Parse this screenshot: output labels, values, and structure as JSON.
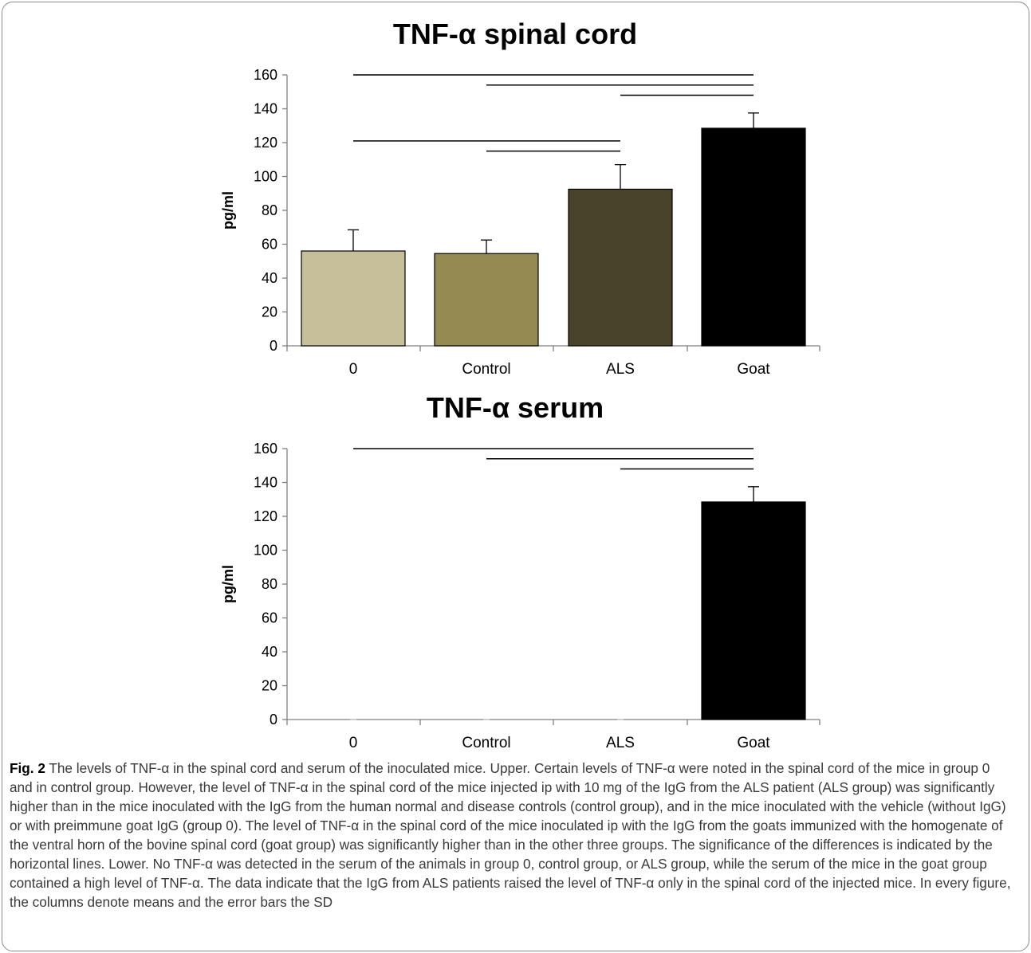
{
  "chart_data": [
    {
      "type": "bar",
      "title": "TNF-α spinal cord",
      "xlabel": "",
      "ylabel": "pg/ml",
      "ylim": [
        0,
        160
      ],
      "yticks": [
        0,
        20,
        40,
        60,
        80,
        100,
        120,
        140,
        160
      ],
      "categories": [
        "0",
        "Control",
        "ALS",
        "Goat"
      ],
      "values": [
        56,
        54.5,
        92.5,
        128.5
      ],
      "errors": [
        12.5,
        8,
        14.5,
        9
      ],
      "colors": [
        "#c6bf99",
        "#968a53",
        "#4a432c",
        "#000000"
      ],
      "significance_lines": [
        {
          "from": "0",
          "to": "Goat",
          "level": 160
        },
        {
          "from": "Control",
          "to": "Goat",
          "level": 154
        },
        {
          "from": "ALS",
          "to": "Goat",
          "level": 148
        },
        {
          "from": "0",
          "to": "ALS",
          "level": 121
        },
        {
          "from": "Control",
          "to": "ALS",
          "level": 115
        }
      ]
    },
    {
      "type": "bar",
      "title": "TNF-α serum",
      "xlabel": "",
      "ylabel": "pg/ml",
      "ylim": [
        0,
        160
      ],
      "yticks": [
        0,
        20,
        40,
        60,
        80,
        100,
        120,
        140,
        160
      ],
      "categories": [
        "0",
        "Control",
        "ALS",
        "Goat"
      ],
      "values": [
        0,
        0,
        0,
        128.5
      ],
      "errors": [
        0,
        0,
        0,
        9
      ],
      "colors": [
        "#c6bf99",
        "#968a53",
        "#4a432c",
        "#000000"
      ],
      "significance_lines": [
        {
          "from": "0",
          "to": "Goat",
          "level": 160
        },
        {
          "from": "Control",
          "to": "Goat",
          "level": 154
        },
        {
          "from": "ALS",
          "to": "Goat",
          "level": 148
        }
      ]
    }
  ],
  "caption": {
    "label": "Fig. 2",
    "text": "The levels of TNF-α in the spinal cord and serum of the inoculated mice. Upper. Certain levels of TNF-α were noted in the spinal cord of the mice in group 0 and in control group. However, the level of TNF-α in the spinal cord of the mice injected ip with 10 mg of the IgG from the ALS patient (ALS group) was significantly higher than in the mice inoculated with the IgG from the human normal and disease controls (control group), and in the mice inoculated with the vehicle (without IgG) or with preimmune goat IgG (group 0). The level of TNF-α in the spinal cord of the mice inoculated ip with the IgG from the goats immunized with the homogenate of the ventral horn of the bovine spinal cord (goat group) was significantly higher than in the other three groups. The significance of the differences is indicated by the horizontal lines. Lower. No TNF-α was detected in the serum of the animals in group 0, control group, or ALS group, while the serum of the mice in the goat group contained a high level of TNF-α. The data indicate that the IgG from ALS patients raised the level of TNF-α only in the spinal cord of the injected mice. In every figure, the columns denote means and the error bars the SD"
  }
}
